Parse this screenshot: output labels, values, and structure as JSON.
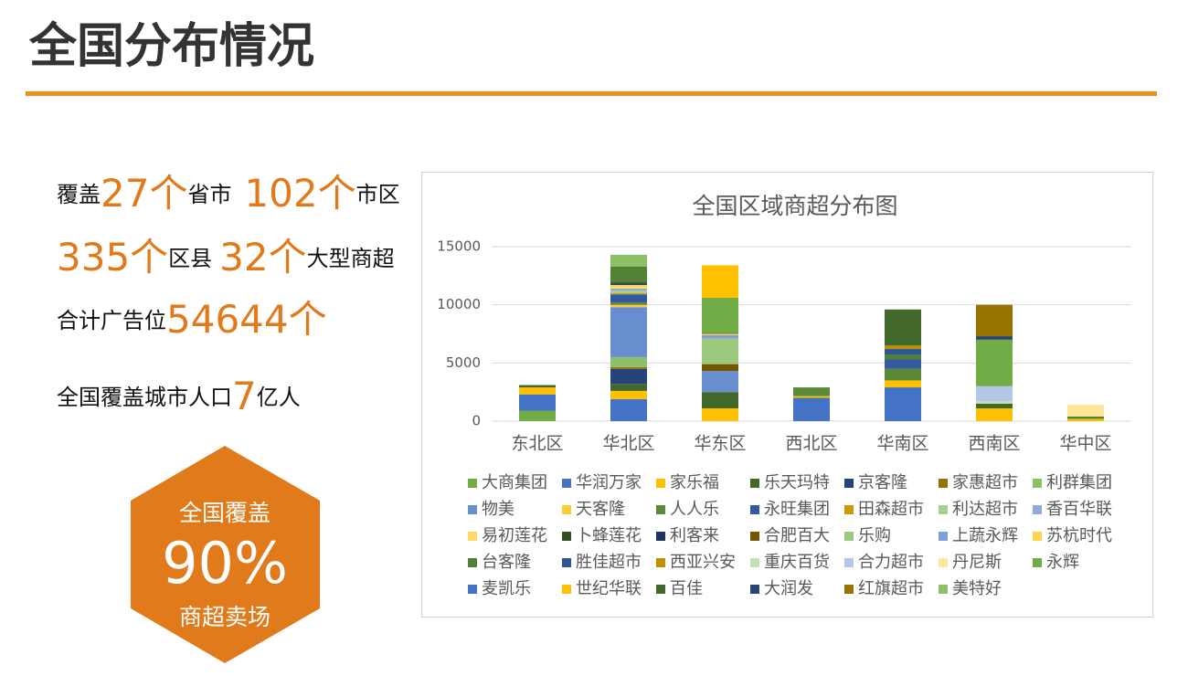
{
  "header": {
    "title": "全国分布情况"
  },
  "stats": [
    [
      "覆盖",
      "27个",
      "省市",
      "102个",
      "市区"
    ],
    [
      "335个",
      "区县",
      "32个",
      "大型商超"
    ],
    [
      "合计广告位",
      "54644个"
    ],
    [
      "全国覆盖城市人口",
      "7",
      "亿人"
    ]
  ],
  "badge": {
    "top": "全国覆盖",
    "value": "90%",
    "bottom": "商超卖场"
  },
  "chart_data": {
    "type": "stacked_bar",
    "title": "全国区域商超分布图",
    "categories": [
      "东北区",
      "华北区",
      "华东区",
      "西北区",
      "华南区",
      "西南区",
      "华中区"
    ],
    "ylim": [
      0,
      15000
    ],
    "yticks": [
      0,
      5000,
      10000,
      15000
    ],
    "grid": true,
    "legend": "bottom",
    "series": [
      {
        "name": "大商集团",
        "color": "#70ad47",
        "values": [
          900,
          0,
          0,
          0,
          0,
          0,
          0
        ]
      },
      {
        "name": "华润万家",
        "color": "#4472c4",
        "values": [
          1400,
          1900,
          0,
          2000,
          2900,
          0,
          0
        ]
      },
      {
        "name": "家乐福",
        "color": "#ffc000",
        "values": [
          600,
          700,
          1100,
          150,
          600,
          1100,
          200
        ]
      },
      {
        "name": "乐天玛特",
        "color": "#43682b",
        "values": [
          200,
          600,
          1400,
          0,
          0,
          400,
          0
        ]
      },
      {
        "name": "京客隆",
        "color": "#264478",
        "values": [
          0,
          1300,
          0,
          0,
          0,
          0,
          0
        ]
      },
      {
        "name": "家惠超市",
        "color": "#997300",
        "values": [
          0,
          150,
          0,
          0,
          0,
          0,
          0
        ]
      },
      {
        "name": "利群集团",
        "color": "#8cc168",
        "values": [
          0,
          850,
          0,
          0,
          0,
          0,
          0
        ]
      },
      {
        "name": "物美",
        "color": "#698ed0",
        "values": [
          0,
          4300,
          1800,
          0,
          0,
          0,
          0
        ]
      },
      {
        "name": "天客隆",
        "color": "#ffcd33",
        "values": [
          0,
          200,
          0,
          0,
          0,
          0,
          0
        ]
      },
      {
        "name": "人人乐",
        "color": "#5a8a39",
        "values": [
          0,
          200,
          0,
          750,
          1000,
          0,
          0
        ]
      },
      {
        "name": "永旺集团",
        "color": "#335aa1",
        "values": [
          0,
          700,
          0,
          0,
          800,
          0,
          0
        ]
      },
      {
        "name": "田森超市",
        "color": "#cc9a00",
        "values": [
          0,
          100,
          0,
          0,
          0,
          0,
          0
        ]
      },
      {
        "name": "利达超市",
        "color": "#a9d18e",
        "values": [
          0,
          200,
          0,
          0,
          0,
          0,
          0
        ]
      },
      {
        "name": "香百华联",
        "color": "#8faadc",
        "values": [
          0,
          200,
          0,
          0,
          0,
          0,
          0
        ]
      },
      {
        "name": "易初莲花",
        "color": "#ffd966",
        "values": [
          0,
          300,
          0,
          0,
          0,
          0,
          0
        ]
      },
      {
        "name": "卜蜂莲花",
        "color": "#334f21",
        "values": [
          0,
          100,
          0,
          0,
          0,
          0,
          0
        ]
      },
      {
        "name": "利客来",
        "color": "#1d3461",
        "values": [
          0,
          100,
          0,
          0,
          0,
          0,
          0
        ]
      },
      {
        "name": "合肥百大",
        "color": "#735700",
        "values": [
          0,
          0,
          600,
          0,
          0,
          0,
          0
        ]
      },
      {
        "name": "乐购",
        "color": "#9dc97f",
        "values": [
          0,
          0,
          2200,
          0,
          0,
          0,
          0
        ]
      },
      {
        "name": "上蔬永辉",
        "color": "#7f9fd8",
        "values": [
          0,
          0,
          300,
          0,
          0,
          0,
          0
        ]
      },
      {
        "name": "苏杭时代",
        "color": "#ffd34d",
        "values": [
          0,
          0,
          100,
          0,
          0,
          0,
          0
        ]
      },
      {
        "name": "台客隆",
        "color": "#548235",
        "values": [
          0,
          1400,
          100,
          0,
          400,
          0,
          200
        ]
      },
      {
        "name": "胜佳超市",
        "color": "#2f5597",
        "values": [
          0,
          0,
          0,
          0,
          500,
          0,
          0
        ]
      },
      {
        "name": "西亚兴安",
        "color": "#bf9000",
        "values": [
          0,
          0,
          0,
          0,
          300,
          0,
          0
        ]
      },
      {
        "name": "重庆百货",
        "color": "#c5e0b4",
        "values": [
          0,
          0,
          0,
          0,
          0,
          200,
          0
        ]
      },
      {
        "name": "合力超市",
        "color": "#b4c7e7",
        "values": [
          0,
          0,
          0,
          0,
          0,
          1300,
          0
        ]
      },
      {
        "name": "丹尼斯",
        "color": "#ffe699",
        "values": [
          0,
          0,
          0,
          0,
          0,
          0,
          1000
        ]
      },
      {
        "name": "永辉",
        "color": "#70ad47",
        "values": [
          0,
          0,
          3000,
          0,
          0,
          4000,
          0
        ]
      },
      {
        "name": "麦凯乐",
        "color": "#4472c4",
        "values": [
          0,
          0,
          0,
          0,
          0,
          0,
          0
        ]
      },
      {
        "name": "世纪华联",
        "color": "#ffc000",
        "values": [
          0,
          0,
          2800,
          0,
          0,
          0,
          0
        ]
      },
      {
        "name": "百佳",
        "color": "#43682b",
        "values": [
          0,
          0,
          0,
          0,
          3100,
          0,
          0
        ]
      },
      {
        "name": "大润发",
        "color": "#264478",
        "values": [
          0,
          0,
          0,
          0,
          0,
          300,
          0
        ]
      },
      {
        "name": "红旗超市",
        "color": "#997300",
        "values": [
          0,
          0,
          0,
          0,
          0,
          2700,
          0
        ]
      },
      {
        "name": "美特好",
        "color": "#8cc168",
        "values": [
          0,
          1000,
          0,
          0,
          0,
          0,
          0
        ]
      }
    ]
  }
}
